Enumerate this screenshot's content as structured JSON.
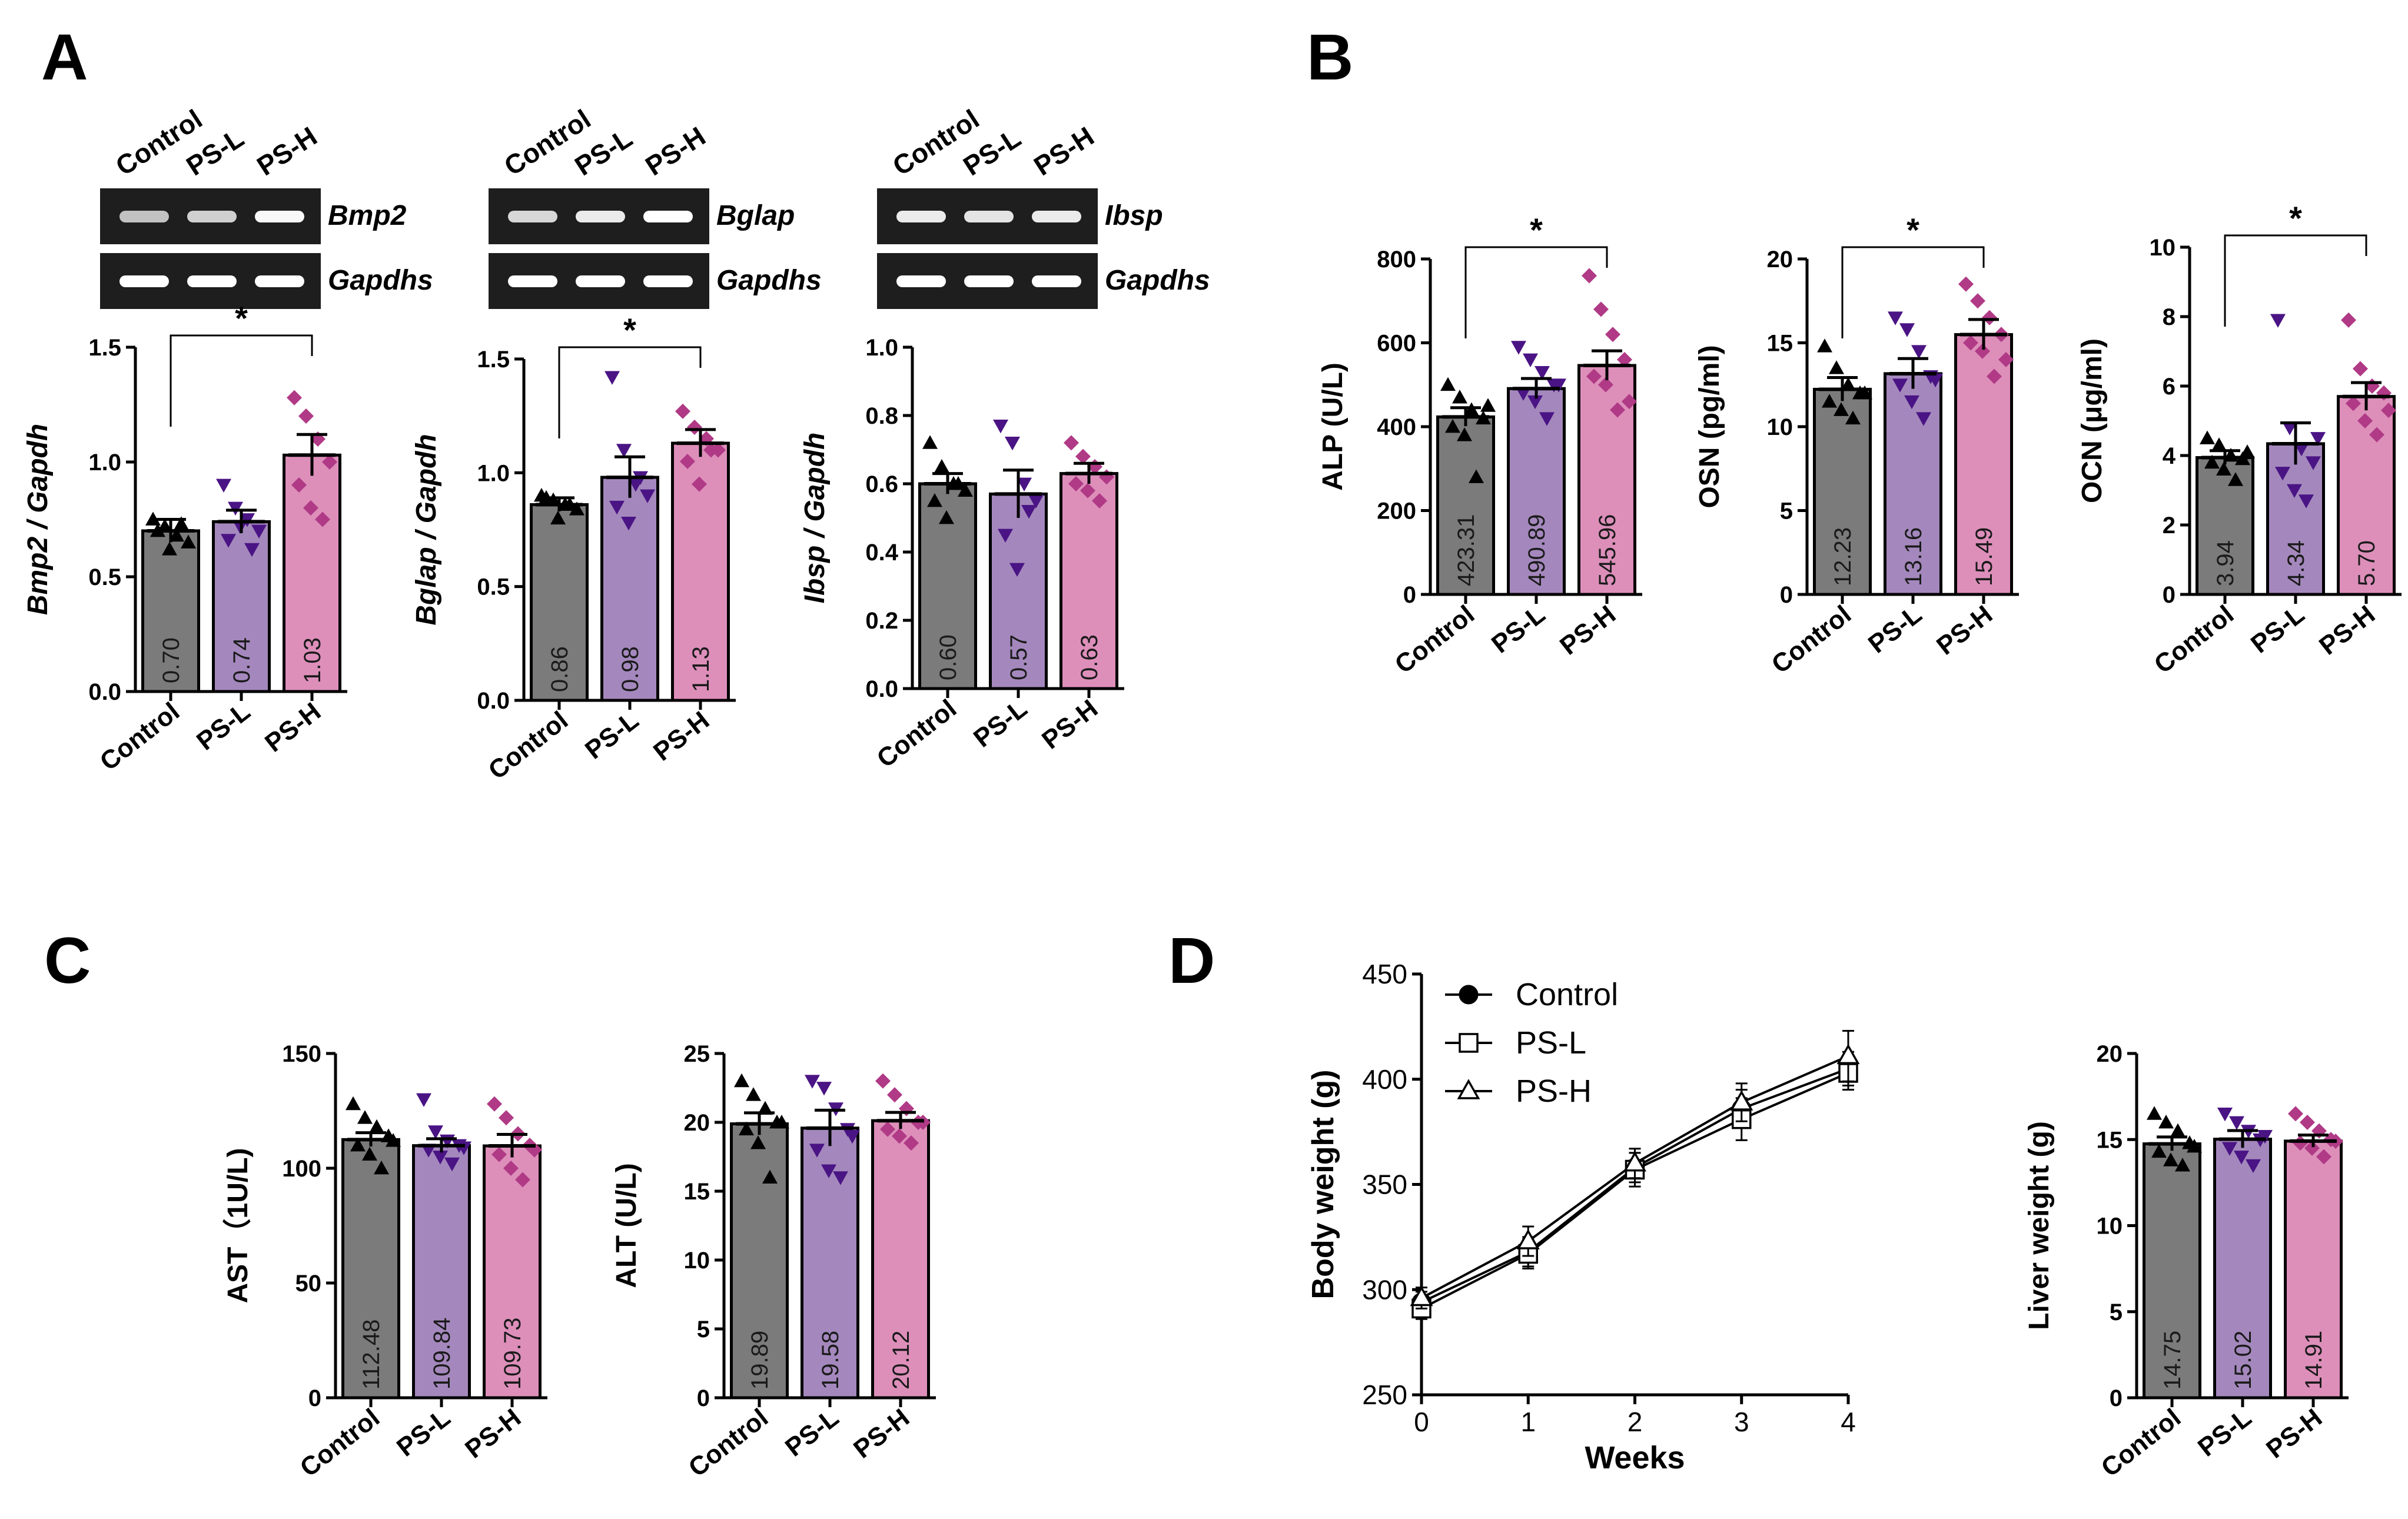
{
  "figure": {
    "panels": [
      "A",
      "B",
      "C",
      "D"
    ],
    "colors": {
      "Control": "#7b7b7b",
      "PS-L": "#a488bd",
      "PS-H": "#dd8fba",
      "dots_Control": "#000000",
      "dots_PS-L": "#4a1485",
      "dots_PS-H": "#b03a86"
    }
  },
  "gels": [
    {
      "panel": "A",
      "lanes": [
        "Control",
        "PS-L",
        "PS-H"
      ],
      "rows": [
        {
          "label": "Bmp2",
          "intensity": [
            0.55,
            0.65,
            0.95
          ]
        },
        {
          "label": "Gapdhs",
          "intensity": [
            1,
            1,
            1
          ]
        }
      ]
    },
    {
      "panel": "A",
      "lanes": [
        "Control",
        "PS-L",
        "PS-H"
      ],
      "rows": [
        {
          "label": "Bglap",
          "intensity": [
            0.7,
            0.85,
            1.0
          ]
        },
        {
          "label": "Gapdhs",
          "intensity": [
            1,
            1,
            1
          ]
        }
      ]
    },
    {
      "panel": "A",
      "lanes": [
        "Control",
        "PS-L",
        "PS-H"
      ],
      "rows": [
        {
          "label": "Ibsp",
          "intensity": [
            0.85,
            0.8,
            0.85
          ]
        },
        {
          "label": "Gapdhs",
          "intensity": [
            1,
            1,
            1
          ]
        }
      ]
    }
  ],
  "chart_data": [
    {
      "id": "bmp2",
      "panel": "A",
      "type": "bar",
      "categories": [
        "Control",
        "PS-L",
        "PS-H"
      ],
      "values": [
        0.7,
        0.74,
        1.03
      ],
      "value_labels": [
        "0.70",
        "0.74",
        "1.03"
      ],
      "sem": [
        0.05,
        0.05,
        0.09
      ],
      "points": [
        [
          0.75,
          0.72,
          0.68,
          0.65,
          0.7,
          0.62,
          0.73
        ],
        [
          0.9,
          0.8,
          0.75,
          0.7,
          0.66,
          0.72,
          0.62
        ],
        [
          1.28,
          1.2,
          1.1,
          1.0,
          0.9,
          0.8,
          0.75
        ]
      ],
      "ylabel": "Bmp2 / Gapdh",
      "ylim": [
        0,
        1.5
      ],
      "yticks": [
        "0.0",
        "0.5",
        "1.0",
        "1.5"
      ],
      "significance": [
        {
          "from": "Control",
          "to": "PS-H",
          "label": "*"
        }
      ]
    },
    {
      "id": "bglap",
      "panel": "A",
      "type": "bar",
      "categories": [
        "Control",
        "PS-L",
        "PS-H"
      ],
      "values": [
        0.86,
        0.98,
        1.13
      ],
      "value_labels": [
        "0.86",
        "0.98",
        "1.13"
      ],
      "sem": [
        0.03,
        0.09,
        0.06
      ],
      "points": [
        [
          0.9,
          0.88,
          0.86,
          0.84,
          0.89,
          0.8,
          0.86
        ],
        [
          1.42,
          1.1,
          0.95,
          0.9,
          0.85,
          0.78,
          0.98
        ],
        [
          1.27,
          1.2,
          1.15,
          1.1,
          1.05,
          0.95,
          1.1
        ]
      ],
      "ylabel": "Bglap / Gapdh",
      "ylim": [
        0,
        1.5
      ],
      "yticks": [
        "0.0",
        "0.5",
        "1.0",
        "1.5"
      ],
      "significance": [
        {
          "from": "Control",
          "to": "PS-H",
          "label": "*"
        }
      ]
    },
    {
      "id": "ibsp",
      "panel": "A",
      "type": "bar",
      "categories": [
        "Control",
        "PS-L",
        "PS-H"
      ],
      "values": [
        0.6,
        0.57,
        0.63
      ],
      "value_labels": [
        "0.60",
        "0.57",
        "0.63"
      ],
      "sem": [
        0.03,
        0.07,
        0.03
      ],
      "points": [
        [
          0.72,
          0.65,
          0.6,
          0.58,
          0.55,
          0.5,
          0.6
        ],
        [
          0.77,
          0.72,
          0.6,
          0.55,
          0.45,
          0.35,
          0.52
        ],
        [
          0.72,
          0.68,
          0.65,
          0.62,
          0.6,
          0.58,
          0.55
        ]
      ],
      "ylabel": "Ibsp / Gapdh",
      "ylim": [
        0,
        1.0
      ],
      "yticks": [
        "0.0",
        "0.2",
        "0.4",
        "0.6",
        "0.8",
        "1.0"
      ],
      "significance": []
    },
    {
      "id": "alp",
      "panel": "B",
      "type": "bar",
      "categories": [
        "Control",
        "PS-L",
        "PS-H"
      ],
      "values": [
        423.31,
        490.89,
        545.96
      ],
      "value_labels": [
        "423.31",
        "490.89",
        "545.96"
      ],
      "sem": [
        22,
        24,
        35
      ],
      "points": [
        [
          500,
          470,
          440,
          420,
          400,
          380,
          280,
          450
        ],
        [
          590,
          560,
          530,
          500,
          480,
          460,
          420,
          500
        ],
        [
          760,
          680,
          620,
          560,
          520,
          500,
          440,
          460
        ]
      ],
      "ylabel": "ALP (U/L)",
      "ylim": [
        0,
        800
      ],
      "yticks": [
        "0",
        "200",
        "400",
        "600",
        "800"
      ],
      "significance": [
        {
          "from": "Control",
          "to": "PS-H",
          "label": "*"
        }
      ]
    },
    {
      "id": "osn",
      "panel": "B",
      "type": "bar",
      "categories": [
        "Control",
        "PS-L",
        "PS-H"
      ],
      "values": [
        12.23,
        13.16,
        15.49
      ],
      "value_labels": [
        "12.23",
        "13.16",
        "15.49"
      ],
      "sem": [
        0.7,
        0.9,
        0.9
      ],
      "points": [
        [
          14.8,
          13.5,
          12.5,
          12.0,
          11.5,
          11.0,
          10.5,
          12.0
        ],
        [
          16.5,
          15.8,
          14.5,
          13.0,
          12.5,
          11.5,
          10.5,
          12.8
        ],
        [
          18.5,
          17.5,
          16.5,
          15.5,
          15.0,
          14.5,
          13.0,
          14.0
        ]
      ],
      "ylabel": "OSN (pg/ml)",
      "ylim": [
        0,
        20
      ],
      "yticks": [
        "0",
        "5",
        "10",
        "15",
        "20"
      ],
      "significance": [
        {
          "from": "Control",
          "to": "PS-H",
          "label": "*"
        }
      ]
    },
    {
      "id": "ocn",
      "panel": "B",
      "type": "bar",
      "categories": [
        "Control",
        "PS-L",
        "PS-H"
      ],
      "values": [
        3.94,
        4.34,
        5.7
      ],
      "value_labels": [
        "3.94",
        "4.34",
        "5.70"
      ],
      "sem": [
        0.2,
        0.6,
        0.4
      ],
      "points": [
        [
          4.5,
          4.3,
          4.0,
          3.9,
          3.8,
          3.6,
          3.3,
          4.1
        ],
        [
          7.9,
          4.8,
          4.2,
          3.8,
          3.5,
          3.0,
          2.7,
          4.5
        ],
        [
          7.9,
          6.5,
          6.0,
          5.8,
          5.5,
          5.0,
          4.6,
          5.3
        ]
      ],
      "ylabel": "OCN (μg/ml)",
      "ylim": [
        0,
        10
      ],
      "yticks": [
        "0",
        "2",
        "4",
        "6",
        "8",
        "10"
      ],
      "significance": [
        {
          "from": "Control",
          "to": "PS-H",
          "label": "*"
        }
      ]
    },
    {
      "id": "ast",
      "panel": "C",
      "type": "bar",
      "categories": [
        "Control",
        "PS-L",
        "PS-H"
      ],
      "values": [
        112.48,
        109.84,
        109.73
      ],
      "value_labels": [
        "112.48",
        "109.84",
        "109.73"
      ],
      "sem": [
        3,
        3,
        5
      ],
      "points": [
        [
          128,
          122,
          118,
          114,
          110,
          106,
          100,
          112
        ],
        [
          130,
          116,
          112,
          110,
          108,
          105,
          102,
          109
        ],
        [
          128,
          122,
          115,
          110,
          106,
          100,
          95,
          108
        ]
      ],
      "ylabel": "AST（1U/L)",
      "ylim": [
        0,
        150
      ],
      "yticks": [
        "0",
        "50",
        "100",
        "150"
      ],
      "significance": []
    },
    {
      "id": "alt",
      "panel": "C",
      "type": "bar",
      "categories": [
        "Control",
        "PS-L",
        "PS-H"
      ],
      "values": [
        19.89,
        19.58,
        20.12
      ],
      "value_labels": [
        "19.89",
        "19.58",
        "20.12"
      ],
      "sem": [
        0.8,
        1.3,
        0.6
      ],
      "points": [
        [
          23,
          22,
          21,
          20,
          19.5,
          18.5,
          16,
          20
        ],
        [
          23,
          22.5,
          21,
          19.5,
          18,
          16.5,
          16,
          19
        ],
        [
          23,
          22,
          21,
          20,
          19.5,
          19,
          18.5,
          20
        ]
      ],
      "ylabel": "ALT (U/L)",
      "ylim": [
        0,
        25
      ],
      "yticks": [
        "0",
        "5",
        "10",
        "15",
        "20",
        "25"
      ],
      "significance": []
    },
    {
      "id": "bodyweight",
      "panel": "D",
      "type": "line",
      "x": [
        0,
        1,
        2,
        3,
        4
      ],
      "series": [
        {
          "name": "Control",
          "marker": "filled-circle",
          "values": [
            294,
            318,
            358,
            386,
            405
          ],
          "sem": [
            5,
            7,
            7,
            9,
            8
          ]
        },
        {
          "name": "PS-L",
          "marker": "open-square",
          "values": [
            291,
            317,
            357,
            381,
            403
          ],
          "sem": [
            5,
            7,
            8,
            10,
            8
          ]
        },
        {
          "name": "PS-H",
          "marker": "open-triangle",
          "values": [
            296,
            323,
            360,
            389,
            411
          ],
          "sem": [
            5,
            7,
            7,
            9,
            12
          ]
        }
      ],
      "xlabel": "Weeks",
      "ylabel": "Body weight (g)",
      "xlim": [
        0,
        4
      ],
      "ylim": [
        250,
        450
      ],
      "xticks": [
        "0",
        "1",
        "2",
        "3",
        "4"
      ],
      "yticks": [
        "250",
        "300",
        "350",
        "400",
        "450"
      ],
      "legend": "top-left"
    },
    {
      "id": "liver",
      "panel": "D",
      "type": "bar",
      "categories": [
        "Control",
        "PS-L",
        "PS-H"
      ],
      "values": [
        14.75,
        15.02,
        14.91
      ],
      "value_labels": [
        "14.75",
        "15.02",
        "14.91"
      ],
      "sem": [
        0.4,
        0.5,
        0.35
      ],
      "points": [
        [
          16.5,
          16,
          15.5,
          14.8,
          14.3,
          13.8,
          13.5,
          14.6
        ],
        [
          16.5,
          16,
          15.5,
          15,
          14.5,
          14,
          13.5,
          15.2
        ],
        [
          16.5,
          16,
          15.5,
          15,
          14.8,
          14.5,
          14,
          14.9
        ]
      ],
      "ylabel": "Liver weight (g)",
      "ylim": [
        0,
        20
      ],
      "yticks": [
        "0",
        "5",
        "10",
        "15",
        "20"
      ],
      "significance": []
    }
  ]
}
